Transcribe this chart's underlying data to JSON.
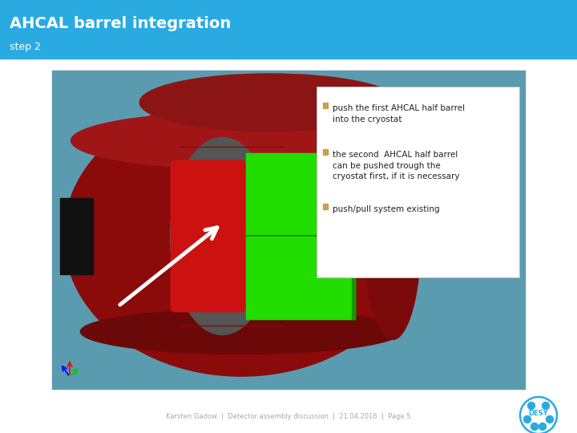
{
  "header_color": "#29ABE2",
  "header_text": "AHCAL barrel integration",
  "header_subtext": "step 2",
  "bg_color": "#FFFFFF",
  "footer_text": "Karsten Gadow  |  Detector assembly discussion  |  21.04.2016  |  Page 5",
  "footer_text_color": "#AAAAAA",
  "image_bg_color": "#5B9BAF",
  "bullet_color": "#C8A050",
  "bullet_text_color": "#222222",
  "bullet_fontsize": 7.5,
  "bullets": [
    "push the first AHCAL half barrel\ninto the cryostat",
    "the second  AHCAL half barrel\ncan be pushed trough the\ncryostat first, if it is necessary",
    "push/pull system existing"
  ],
  "header_title_fontsize": 14,
  "header_sub_fontsize": 9,
  "desy_logo_color": "#29ABE2",
  "fig_width": 7.2,
  "fig_height": 5.4,
  "dpi": 100
}
